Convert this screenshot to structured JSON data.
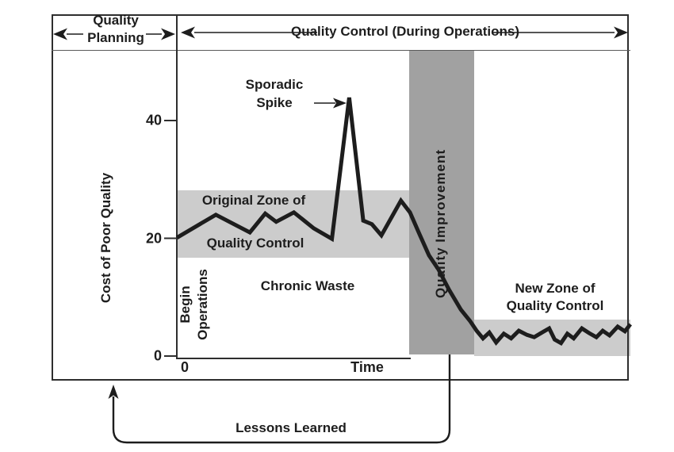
{
  "header": {
    "left_label_lines": [
      "Quality",
      "Planning"
    ],
    "right_label": "Quality Control (During Operations)"
  },
  "footer": {
    "lessons_learned": "Lessons Learned"
  },
  "colors": {
    "band_light": "#cccccc",
    "band_dark": "#a1a1a1",
    "line": "#1d1d1d",
    "text": "#1d1d1d"
  },
  "chart_data": {
    "type": "line",
    "title": "",
    "ylabel": "Cost of Poor Quality",
    "xlabel": "Time",
    "x_origin_label": "0",
    "ylim": [
      0,
      52
    ],
    "xlim": [
      0,
      100
    ],
    "grid": false,
    "legend": "none",
    "yticks": [
      {
        "value": 0,
        "label": "0"
      },
      {
        "value": 20,
        "label": "20"
      },
      {
        "value": 40,
        "label": "40"
      }
    ],
    "series": [
      {
        "name": "Cost of Poor Quality over Time",
        "points": [
          [
            0,
            20.1
          ],
          [
            8.6,
            24.0
          ],
          [
            16.1,
            21.0
          ],
          [
            19.5,
            24.2
          ],
          [
            21.9,
            22.8
          ],
          [
            25.8,
            24.4
          ],
          [
            30.2,
            21.7
          ],
          [
            34.2,
            19.9
          ],
          [
            38.0,
            43.9
          ],
          [
            41.1,
            23.0
          ],
          [
            43.0,
            22.4
          ],
          [
            45.1,
            20.5
          ],
          [
            49.4,
            26.4
          ],
          [
            51.4,
            24.4
          ],
          [
            53.5,
            20.7
          ],
          [
            55.6,
            17.1
          ],
          [
            57.7,
            14.7
          ],
          [
            60.0,
            11.3
          ],
          [
            62.6,
            7.9
          ],
          [
            64.7,
            5.9
          ],
          [
            66.1,
            4.3
          ],
          [
            67.5,
            3.0
          ],
          [
            68.9,
            4.0
          ],
          [
            70.4,
            2.3
          ],
          [
            72.1,
            3.8
          ],
          [
            73.7,
            3.0
          ],
          [
            75.4,
            4.3
          ],
          [
            77.2,
            3.6
          ],
          [
            78.8,
            3.2
          ],
          [
            80.5,
            4.0
          ],
          [
            82.1,
            4.7
          ],
          [
            83.3,
            2.8
          ],
          [
            84.7,
            2.2
          ],
          [
            86.1,
            3.8
          ],
          [
            87.5,
            3.0
          ],
          [
            89.3,
            4.7
          ],
          [
            90.9,
            3.9
          ],
          [
            92.5,
            3.2
          ],
          [
            93.9,
            4.3
          ],
          [
            95.4,
            3.5
          ],
          [
            97.2,
            5.0
          ],
          [
            98.8,
            4.2
          ],
          [
            100,
            5.4
          ]
        ]
      }
    ],
    "zones": [
      {
        "name": "original-zone-of-quality-control",
        "t": [
          0,
          51.2
        ],
        "v": [
          16.7,
          28.1
        ],
        "color_key": "band_light"
      },
      {
        "name": "quality-improvement",
        "t": [
          51.2,
          65.6
        ],
        "v": [
          0.3,
          51.9
        ],
        "color_key": "band_dark"
      },
      {
        "name": "new-zone-of-quality-control",
        "t": [
          65.6,
          100
        ],
        "v": [
          0,
          6.2
        ],
        "color_key": "band_light"
      }
    ],
    "annotations": {
      "sporadic_spike_lines": [
        "Sporadic",
        "Spike"
      ],
      "original_zone_lines": [
        "Original Zone of",
        "Quality Control"
      ],
      "chronic_waste": "Chronic Waste",
      "begin_operations_lines": [
        "Begin",
        "Operations"
      ],
      "quality_improvement": "Quality Improvement",
      "new_zone_lines": [
        "New Zone of",
        "Quality Control"
      ]
    }
  }
}
